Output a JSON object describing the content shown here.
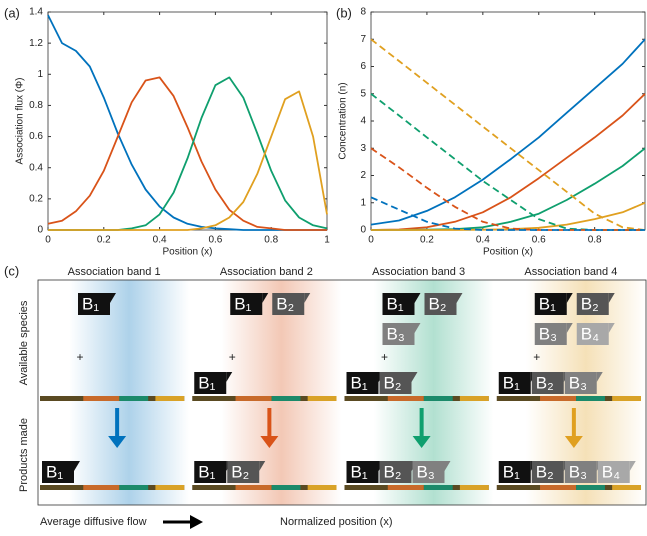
{
  "chart_data": [
    {
      "type": "line",
      "panel_label": "(a)",
      "xlabel": "Position (x)",
      "ylabel": "Association flux (Φ)",
      "xlim": [
        0,
        1
      ],
      "ylim": [
        0,
        1.4
      ],
      "xticks": [
        0,
        0.2,
        0.4,
        0.6,
        0.8,
        1
      ],
      "yticks": [
        0,
        0.2,
        0.4,
        0.6,
        0.8,
        1,
        1.2,
        1.4
      ],
      "x": [
        0,
        0.05,
        0.1,
        0.15,
        0.2,
        0.25,
        0.3,
        0.35,
        0.4,
        0.45,
        0.5,
        0.55,
        0.6,
        0.65,
        0.7,
        0.75,
        0.8,
        0.85,
        0.9,
        0.95,
        1
      ],
      "series": [
        {
          "color": "#0072bd",
          "values": [
            1.38,
            1.2,
            1.15,
            1.05,
            0.85,
            0.62,
            0.42,
            0.26,
            0.15,
            0.08,
            0.04,
            0.02,
            0.01,
            0.005,
            0,
            0,
            0,
            0,
            0,
            0,
            0
          ]
        },
        {
          "color": "#d95319",
          "values": [
            0.04,
            0.06,
            0.12,
            0.22,
            0.38,
            0.6,
            0.82,
            0.96,
            0.98,
            0.86,
            0.66,
            0.44,
            0.26,
            0.13,
            0.06,
            0.02,
            0.01,
            0,
            0,
            0,
            0
          ]
        },
        {
          "color": "#0f9f6e",
          "values": [
            0,
            0,
            0,
            0,
            0,
            0,
            0.01,
            0.03,
            0.1,
            0.24,
            0.46,
            0.72,
            0.93,
            0.98,
            0.85,
            0.62,
            0.38,
            0.19,
            0.08,
            0.03,
            0.01
          ]
        },
        {
          "color": "#e0a020",
          "values": [
            0,
            0,
            0,
            0,
            0,
            0,
            0,
            0,
            0,
            0,
            0,
            0.01,
            0.03,
            0.08,
            0.18,
            0.36,
            0.6,
            0.84,
            0.89,
            0.6,
            0.1
          ]
        }
      ]
    },
    {
      "type": "line",
      "panel_label": "(b)",
      "xlabel": "Position (x)",
      "ylabel": "Concentration (n)",
      "xlim": [
        0,
        0.98
      ],
      "ylim": [
        0,
        8
      ],
      "xticks": [
        0,
        0.2,
        0.4,
        0.6,
        0.8
      ],
      "yticks": [
        0,
        1,
        2,
        3,
        4,
        5,
        6,
        7,
        8
      ],
      "x": [
        0,
        0.1,
        0.2,
        0.3,
        0.4,
        0.5,
        0.6,
        0.7,
        0.8,
        0.9,
        0.98
      ],
      "series": [
        {
          "color": "#0072bd",
          "dashed": false,
          "values": [
            0.2,
            0.35,
            0.7,
            1.2,
            1.85,
            2.6,
            3.4,
            4.3,
            5.2,
            6.1,
            7
          ]
        },
        {
          "color": "#d95319",
          "dashed": false,
          "values": [
            0,
            0.02,
            0.1,
            0.3,
            0.65,
            1.2,
            1.9,
            2.65,
            3.4,
            4.2,
            5
          ]
        },
        {
          "color": "#0f9f6e",
          "dashed": false,
          "values": [
            0,
            0,
            0.01,
            0.03,
            0.1,
            0.3,
            0.6,
            1.1,
            1.7,
            2.35,
            3
          ]
        },
        {
          "color": "#e0a020",
          "dashed": false,
          "values": [
            0,
            0,
            0,
            0,
            0.01,
            0.03,
            0.08,
            0.2,
            0.4,
            0.65,
            1
          ]
        },
        {
          "color": "#e0a020",
          "dashed": true,
          "values": [
            7,
            6.2,
            5.4,
            4.6,
            3.8,
            3,
            2.2,
            1.4,
            0.6,
            0.1,
            0
          ]
        },
        {
          "color": "#0f9f6e",
          "dashed": true,
          "values": [
            5,
            4.2,
            3.4,
            2.6,
            1.8,
            1.1,
            0.4,
            0.05,
            0,
            0,
            0
          ]
        },
        {
          "color": "#d95319",
          "dashed": true,
          "values": [
            3,
            2.3,
            1.55,
            0.85,
            0.3,
            0.05,
            0,
            0,
            0,
            0,
            0
          ]
        },
        {
          "color": "#0072bd",
          "dashed": true,
          "values": [
            1.2,
            0.75,
            0.3,
            0.05,
            0,
            0,
            0,
            0,
            0,
            0,
            0
          ]
        }
      ]
    }
  ],
  "diagram": {
    "panel_label": "(c)",
    "row_labels": [
      "Available species",
      "Products made"
    ],
    "flow_label": "Average diffusive flow",
    "position_label": "Normalized position (x)",
    "bands": [
      {
        "title": "Association band 1",
        "color": "#0072bd",
        "plus": "+",
        "available": [
          [
            "B₁"
          ]
        ],
        "attached": [],
        "products": [
          "B₁"
        ]
      },
      {
        "title": "Association band 2",
        "color": "#d95319",
        "plus": "+",
        "available": [
          [
            "B₁",
            "B₂"
          ]
        ],
        "attached": [
          "B₁"
        ],
        "products": [
          "B₁",
          "B₂"
        ]
      },
      {
        "title": "Association band 3",
        "color": "#0f9f6e",
        "plus": "+",
        "available": [
          [
            "B₁",
            "B₂"
          ],
          [
            "B₃"
          ]
        ],
        "attached": [
          "B₁",
          "B₂"
        ],
        "products": [
          "B₁",
          "B₂",
          "B₃"
        ]
      },
      {
        "title": "Association band 4",
        "color": "#e0a020",
        "plus": "+",
        "available": [
          [
            "B₁",
            "B₂"
          ],
          [
            "B₃",
            "B₄"
          ]
        ],
        "attached": [
          "B₁",
          "B₂",
          "B₃"
        ],
        "products": [
          "B₁",
          "B₂",
          "B₃",
          "B₄"
        ]
      }
    ]
  }
}
